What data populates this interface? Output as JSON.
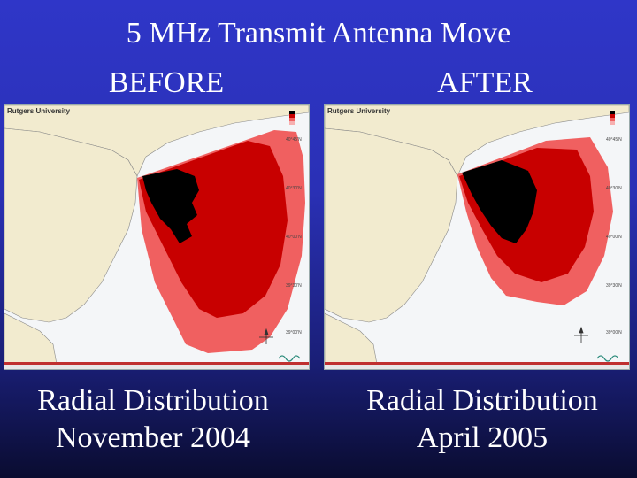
{
  "title": "5 MHz Transmit Antenna Move",
  "panels": [
    {
      "label": "BEFORE",
      "map_header": "Rutgers University",
      "caption_line1": "Radial Distribution",
      "caption_line2": "November 2004"
    },
    {
      "label": "AFTER",
      "map_header": "Rutgers University",
      "caption_line1": "Radial Distribution",
      "caption_line2": "April 2005"
    }
  ],
  "colors": {
    "background_top": "#2f36c8",
    "background_bottom": "#0a0c30",
    "coverage_outer": "#f06060",
    "coverage_mid": "#c80000",
    "coverage_core": "#000000",
    "land": "#f2ebcf",
    "water": "#f4f6f8"
  },
  "icons": [
    "compass-rose-icon",
    "wave-logo-icon"
  ]
}
